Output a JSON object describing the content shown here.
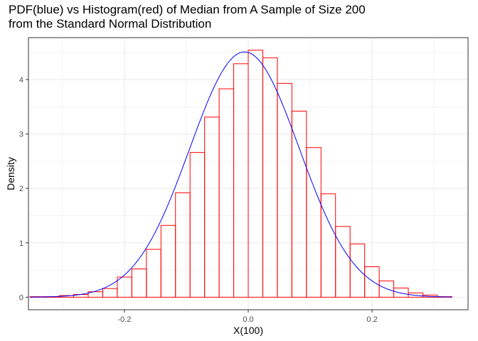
{
  "chart_data": {
    "type": "bar",
    "title": [
      "PDF(blue) vs Histogram(red) of Median from A Sample of Size 200",
      "from the Standard Normal Distribution"
    ],
    "xlabel": "X(100)",
    "ylabel": "Density",
    "xlim": [
      -0.355,
      0.355
    ],
    "ylim": [
      -0.23,
      4.77
    ],
    "x_ticks": [
      -0.2,
      0.0,
      0.2
    ],
    "x_tick_labels": [
      "-0.2",
      "0.0",
      "0.2"
    ],
    "y_ticks": [
      0,
      1,
      2,
      3,
      4
    ],
    "y_tick_labels": [
      "0",
      "1",
      "2",
      "3",
      "4"
    ],
    "grid": true,
    "bin_width": 0.0235,
    "bins": [
      {
        "x0": -0.3525,
        "density": 0.01
      },
      {
        "x0": -0.329,
        "density": 0.01
      },
      {
        "x0": -0.3055,
        "density": 0.03
      },
      {
        "x0": -0.282,
        "density": 0.05
      },
      {
        "x0": -0.2585,
        "density": 0.1
      },
      {
        "x0": -0.235,
        "density": 0.16
      },
      {
        "x0": -0.2115,
        "density": 0.37
      },
      {
        "x0": -0.188,
        "density": 0.52
      },
      {
        "x0": -0.1645,
        "density": 0.88
      },
      {
        "x0": -0.141,
        "density": 1.32
      },
      {
        "x0": -0.1175,
        "density": 1.92
      },
      {
        "x0": -0.094,
        "density": 2.66
      },
      {
        "x0": -0.0705,
        "density": 3.31
      },
      {
        "x0": -0.047,
        "density": 3.83
      },
      {
        "x0": -0.0235,
        "density": 4.29
      },
      {
        "x0": 0.0,
        "density": 4.54
      },
      {
        "x0": 0.0235,
        "density": 4.4
      },
      {
        "x0": 0.047,
        "density": 3.93
      },
      {
        "x0": 0.0705,
        "density": 3.42
      },
      {
        "x0": 0.094,
        "density": 2.75
      },
      {
        "x0": 0.1175,
        "density": 1.9
      },
      {
        "x0": 0.141,
        "density": 1.3
      },
      {
        "x0": 0.1645,
        "density": 0.98
      },
      {
        "x0": 0.188,
        "density": 0.56
      },
      {
        "x0": 0.2115,
        "density": 0.3
      },
      {
        "x0": 0.235,
        "density": 0.17
      },
      {
        "x0": 0.2585,
        "density": 0.08
      },
      {
        "x0": 0.282,
        "density": 0.04
      },
      {
        "x0": 0.3055,
        "density": 0.01
      }
    ],
    "pdf": {
      "distribution": "normal",
      "mean": -0.006,
      "sd": 0.0885,
      "peak_density": 4.51
    },
    "colors": {
      "histogram": "#ff0000",
      "pdf": "#0000ff",
      "grid": "#ebebeb",
      "panel_border": "#333333"
    }
  }
}
